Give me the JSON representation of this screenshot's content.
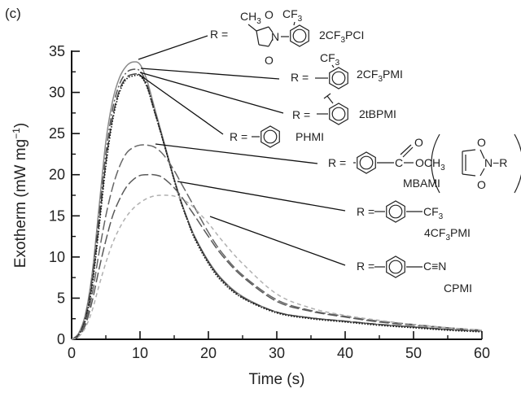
{
  "panel_label": "(c)",
  "chart_data": {
    "type": "line",
    "xlabel": "Time (s)",
    "ylabel": "Exotherm (mW mg",
    "ylabel_sup": "−1",
    "ylabel_close": ")",
    "xlim": [
      0,
      60
    ],
    "ylim": [
      0,
      35
    ],
    "xticks": [
      0,
      10,
      20,
      30,
      40,
      50,
      60
    ],
    "yticks": [
      0,
      5,
      10,
      15,
      20,
      25,
      30,
      35
    ],
    "grid": false,
    "x": [
      0,
      1,
      2,
      3,
      4,
      5,
      6,
      7,
      8,
      9,
      10,
      11,
      12,
      13,
      14,
      15,
      16,
      17,
      18,
      20,
      22,
      25,
      30,
      35,
      40,
      45,
      50,
      55,
      60
    ],
    "series": [
      {
        "name": "2CF3PCI",
        "style": "solid",
        "color": "#8a8a8a",
        "values": [
          0,
          0.7,
          3,
          8,
          16,
          24,
          29,
          31.8,
          33.2,
          33.7,
          33.4,
          31.5,
          28.5,
          25.5,
          22.5,
          19.5,
          16.8,
          14.5,
          12.5,
          9.5,
          7.3,
          5.2,
          3.3,
          2.6,
          2.2,
          1.8,
          1.5,
          1.2,
          1.0
        ]
      },
      {
        "name": "2CF3PMI",
        "style": "dash-dot",
        "color": "#555555",
        "values": [
          0,
          0.6,
          2.7,
          7.5,
          15,
          22.5,
          28,
          31,
          32.4,
          32.8,
          32.6,
          31,
          28.2,
          25.3,
          22.3,
          19.4,
          16.7,
          14.4,
          12.4,
          9.4,
          7.2,
          5.1,
          3.3,
          2.6,
          2.2,
          1.8,
          1.5,
          1.2,
          1.0
        ]
      },
      {
        "name": "2tBPMI",
        "style": "long-dash",
        "color": "#444444",
        "values": [
          0,
          0.5,
          2.4,
          6.8,
          14,
          21.5,
          27,
          30.3,
          31.8,
          32.2,
          32.1,
          30.8,
          28,
          25.2,
          22.3,
          19.4,
          16.7,
          14.4,
          12.4,
          9.4,
          7.2,
          5.1,
          3.3,
          2.6,
          2.2,
          1.8,
          1.5,
          1.2,
          1.0
        ]
      },
      {
        "name": "PHMI",
        "style": "dotted",
        "color": "#111111",
        "values": [
          0,
          0.5,
          2.3,
          6.5,
          13.5,
          21,
          26.6,
          30,
          31.6,
          32.0,
          32.0,
          30.7,
          28,
          25.2,
          22.3,
          19.3,
          16.6,
          14.3,
          12.2,
          9.2,
          7.0,
          5.0,
          3.2,
          2.5,
          2.1,
          1.7,
          1.4,
          1.1,
          0.9
        ]
      },
      {
        "name": "MBAMI",
        "style": "long-dash",
        "color": "#666666",
        "values": [
          0,
          0.4,
          2,
          5.5,
          10.5,
          15,
          18.5,
          21,
          22.6,
          23.3,
          23.6,
          23.6,
          23.4,
          22.8,
          21.8,
          20.5,
          19,
          17.5,
          16,
          13,
          10.5,
          7.8,
          4.8,
          3.5,
          2.8,
          2.2,
          1.8,
          1.4,
          1.1
        ]
      },
      {
        "name": "4CF3PMI",
        "style": "long-dash",
        "color": "#5a5a5a",
        "values": [
          0,
          0.35,
          1.7,
          4.6,
          8.5,
          12,
          15,
          17,
          18.5,
          19.4,
          19.9,
          20,
          20,
          19.8,
          19.2,
          18.4,
          17.4,
          16.2,
          15,
          12.5,
          10.2,
          7.6,
          4.6,
          3.4,
          2.7,
          2.1,
          1.7,
          1.4,
          1.1
        ]
      },
      {
        "name": "CPMI",
        "style": "short-dash",
        "color": "#b0b0b0",
        "values": [
          0,
          0.3,
          1.4,
          3.5,
          6.5,
          9.3,
          11.7,
          13.5,
          14.9,
          15.9,
          16.6,
          17.1,
          17.4,
          17.5,
          17.5,
          17.4,
          17.1,
          16.6,
          15.9,
          14.1,
          12,
          9.2,
          5.5,
          3.8,
          2.9,
          2.3,
          1.8,
          1.4,
          1.1
        ]
      }
    ],
    "annotations": {
      "r_eq": "R =",
      "cf3": "CF",
      "three": "3",
      "ch3": "CH",
      "o": "O",
      "n": "N",
      "och3": "OCH",
      "c_triple_n": "C≡N",
      "c": "C",
      "n_r": "N−R",
      "labels": {
        "pcl_a": "2CF",
        "pcl_b": "PCI",
        "pmi2_a": "2CF",
        "pmi2_b": "PMI",
        "tb": "2tBPMI",
        "ph": "PHMI",
        "mb": "MBAMI",
        "pmi4_a": "4CF",
        "pmi4_b": "PMI",
        "cp": "CPMI"
      }
    }
  }
}
